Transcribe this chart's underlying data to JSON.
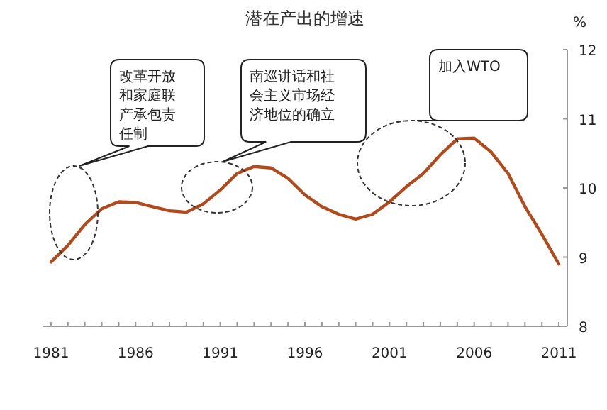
{
  "chart_data": {
    "type": "line",
    "title": "潜在产出的增速",
    "ylabel": "%",
    "x": [
      1981,
      1982,
      1983,
      1984,
      1985,
      1986,
      1987,
      1988,
      1989,
      1990,
      1991,
      1992,
      1993,
      1994,
      1995,
      1996,
      1997,
      1998,
      1999,
      2000,
      2001,
      2002,
      2003,
      2004,
      2005,
      2006,
      2007,
      2008,
      2009,
      2010,
      2011
    ],
    "series": [
      {
        "color": "#b24a1c",
        "values": [
          8.93,
          9.17,
          9.47,
          9.7,
          9.8,
          9.79,
          9.73,
          9.67,
          9.65,
          9.77,
          9.97,
          10.21,
          10.31,
          10.29,
          10.14,
          9.9,
          9.73,
          9.62,
          9.55,
          9.62,
          9.8,
          10.02,
          10.21,
          10.48,
          10.71,
          10.72,
          10.52,
          10.21,
          9.73,
          9.33,
          8.9
        ]
      }
    ],
    "xlim": [
      1980.5,
      2011.5
    ],
    "xticks": [
      1981,
      {
        "value": 1982,
        "label": null
      },
      {
        "value": 1983,
        "label": null
      },
      {
        "value": 1984,
        "label": null
      },
      {
        "value": 1985,
        "label": null
      },
      1986,
      {
        "value": 1987,
        "label": null
      },
      {
        "value": 1988,
        "label": null
      },
      {
        "value": 1989,
        "label": null
      },
      {
        "value": 1990,
        "label": null
      },
      1991,
      {
        "value": 1992,
        "label": null
      },
      {
        "value": 1993,
        "label": null
      },
      {
        "value": 1994,
        "label": null
      },
      {
        "value": 1995,
        "label": null
      },
      1996,
      {
        "value": 1997,
        "label": null
      },
      {
        "value": 1998,
        "label": null
      },
      {
        "value": 1999,
        "label": null
      },
      {
        "value": 2000,
        "label": null
      },
      2001,
      {
        "value": 2002,
        "label": null
      },
      {
        "value": 2003,
        "label": null
      },
      {
        "value": 2004,
        "label": null
      },
      {
        "value": 2005,
        "label": null
      },
      2006,
      {
        "value": 2007,
        "label": null
      },
      {
        "value": 2008,
        "label": null
      },
      {
        "value": 2009,
        "label": null
      },
      {
        "value": 2010,
        "label": null
      },
      2011
    ],
    "ylim": [
      8,
      12
    ],
    "yticks": [
      8,
      9,
      10,
      11,
      12
    ],
    "annotations": [
      "改革开放和家庭联产承包责任制",
      "南巡讲话和社会主义市场经济地位的确立",
      "加入WTO"
    ],
    "grid": false,
    "marker": "none",
    "line_style": "solid"
  }
}
